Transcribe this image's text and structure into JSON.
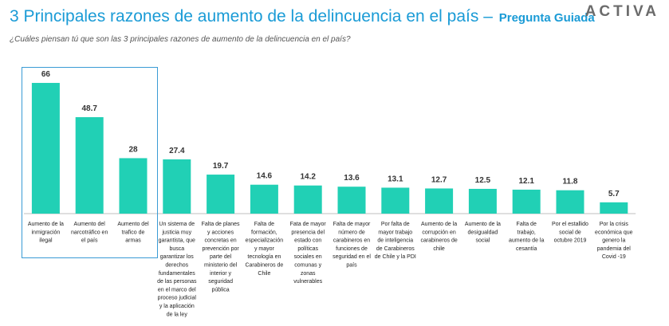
{
  "header": {
    "title": "3 Principales razones de aumento de la delincuencia en el país –",
    "subtitle": "Pregunta Guiada",
    "question": "¿Cuáles piensan tú que son las 3  principales razones de aumento de la delincuencia en el país?",
    "logo": "ACTIVA"
  },
  "colors": {
    "bar": "#21d0b5",
    "title": "#1a9bd6",
    "highlight_box": "#3a9bd5",
    "axis": "#bfbfbf"
  },
  "chart_data": {
    "type": "bar",
    "title": "3 Principales razones de aumento de la delincuencia en el país – Pregunta Guiada",
    "xlabel": "",
    "ylabel": "",
    "ylim": [
      0,
      70
    ],
    "highlighted_categories": 3,
    "categories": [
      [
        "Aumento de la",
        "inmigración",
        "ilegal"
      ],
      [
        "Aumento del",
        "narcotráfico en",
        "el país"
      ],
      [
        "Aumento del",
        "trafico de",
        "armas"
      ],
      [
        "Un sistema de",
        "justicia muy",
        "garantista, que",
        "busca",
        "garantizar los",
        "derechos",
        "fundamentales",
        "de las personas",
        "en el marco del",
        "proceso judicial",
        "y la aplicación",
        "de la ley"
      ],
      [
        "Falta de planes",
        "y acciones",
        "concretas en",
        "prevención por",
        "parte del",
        "ministerio del",
        "interior y",
        "seguridad",
        "pública"
      ],
      [
        "Falta de",
        "formación,",
        "especialización",
        "y mayor",
        "tecnología en",
        "Carabineros de",
        "Chile"
      ],
      [
        "Fata de mayor",
        "presencia del",
        "estado con",
        "políticas",
        "sociales en",
        "comunas y",
        "zonas",
        "vulnerables"
      ],
      [
        "Falta de mayor",
        "número de",
        "carabineros en",
        "funciones de",
        "seguridad en el",
        "país"
      ],
      [
        "Por falta de",
        "mayor trabajo",
        "de inteligencia",
        "de Carabineros",
        "de Chile y la PDI"
      ],
      [
        "Aumento de la",
        "corrupción en",
        "carabineros de",
        "chile"
      ],
      [
        "Aumento de la",
        "desigualdad",
        "social"
      ],
      [
        "Falta de",
        "trabajo,",
        "aumento de la",
        "cesantía"
      ],
      [
        "Por el estallido",
        "social de",
        "octubre 2019"
      ],
      [
        "Por la crisis",
        "económica que",
        "genero la",
        "pandemia del",
        "Covid -19"
      ]
    ],
    "values": [
      66,
      48.7,
      28,
      27.4,
      19.7,
      14.6,
      14.2,
      13.6,
      13.1,
      12.7,
      12.5,
      12.1,
      11.8,
      5.7
    ],
    "value_labels": [
      "66",
      "48.7",
      "28",
      "27.4",
      "19.7",
      "14.6",
      "14.2",
      "13.6",
      "13.1",
      "12.7",
      "12.5",
      "12.1",
      "11.8",
      "5.7"
    ]
  }
}
